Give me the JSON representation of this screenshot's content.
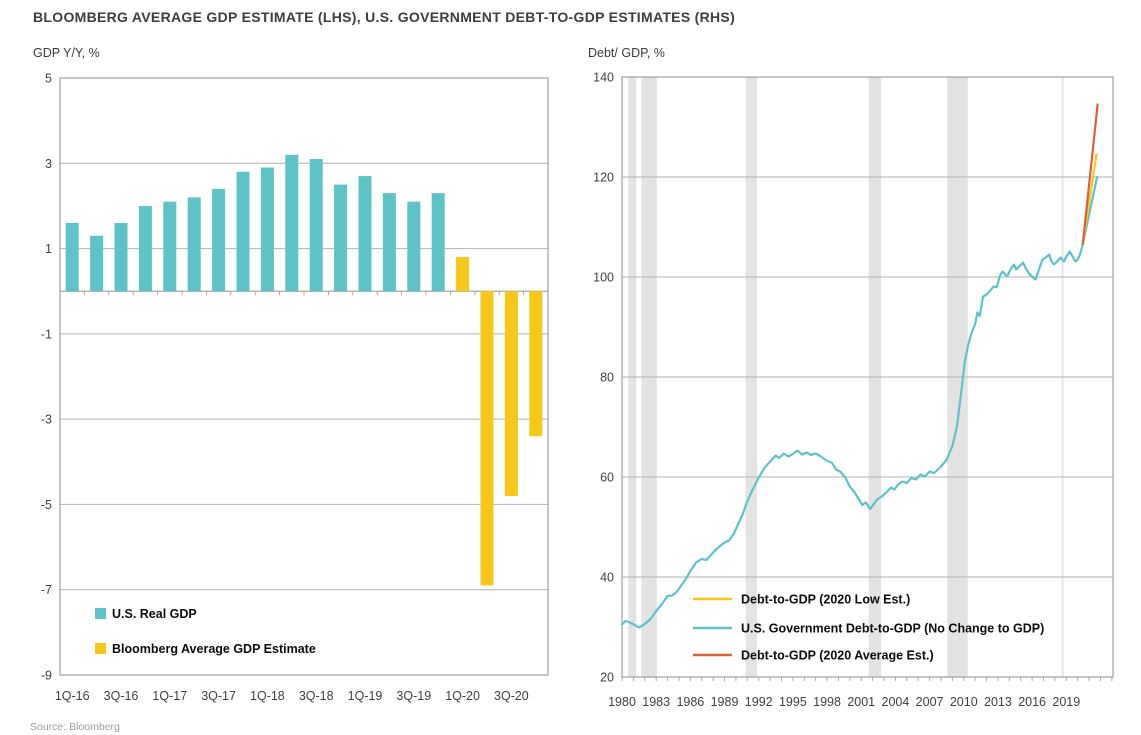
{
  "page": {
    "title": "BLOOMBERG AVERAGE GDP ESTIMATE (LHS), U.S. GOVERNMENT DEBT-TO-GDP ESTIMATES (RHS)",
    "source": "Source: Bloomberg"
  },
  "colors": {
    "teal": "#5EC3C8",
    "yellow": "#F8C71A",
    "orange": "#D96038",
    "grid": "#b3b3b3",
    "border": "#a0a0a0",
    "zero_line": "#a8a8a8",
    "tick": "#a8a8a8",
    "recession_band": "#e3e3e3"
  },
  "chart_data": [
    {
      "type": "bar",
      "title": "GDP Y/Y, %",
      "categories": [
        "1Q-16",
        "2Q-16",
        "3Q-16",
        "4Q-16",
        "1Q-17",
        "2Q-17",
        "3Q-17",
        "4Q-17",
        "1Q-18",
        "2Q-18",
        "3Q-18",
        "4Q-18",
        "1Q-19",
        "2Q-19",
        "3Q-19",
        "4Q-19",
        "1Q-20",
        "2Q-20",
        "3Q-20",
        "4Q-20"
      ],
      "x_tick_labels": [
        "1Q-16",
        "3Q-16",
        "1Q-17",
        "3Q-17",
        "1Q-18",
        "3Q-18",
        "1Q-19",
        "3Q-19",
        "1Q-20",
        "3Q-20"
      ],
      "series": [
        {
          "name": "U.S. Real GDP",
          "color_key": "teal",
          "values": [
            1.6,
            1.3,
            1.6,
            2.0,
            2.1,
            2.2,
            2.4,
            2.8,
            2.9,
            3.2,
            3.1,
            2.5,
            2.7,
            2.3,
            2.1,
            2.3,
            null,
            null,
            null,
            null
          ]
        },
        {
          "name": "Bloomberg Average GDP Estimate",
          "color_key": "yellow",
          "values": [
            null,
            null,
            null,
            null,
            null,
            null,
            null,
            null,
            null,
            null,
            null,
            null,
            null,
            null,
            null,
            null,
            0.8,
            -6.9,
            -4.8,
            -3.4
          ]
        }
      ],
      "ylim": [
        -9,
        5
      ],
      "y_ticks": [
        5,
        3,
        1,
        -1,
        -3,
        -5,
        -7,
        -9
      ],
      "grid": true,
      "zero_line": true,
      "legend_position": "bottom-left-inside"
    },
    {
      "type": "line",
      "title": "Debt/ GDP, %",
      "xlim": [
        1980,
        2023.1
      ],
      "ylim": [
        20,
        140
      ],
      "y_ticks": [
        140,
        120,
        100,
        80,
        60,
        40,
        20
      ],
      "x_ticks": [
        1980,
        1983,
        1986,
        1989,
        1992,
        1995,
        1998,
        2001,
        2004,
        2007,
        2010,
        2013,
        2016,
        2019
      ],
      "grid": true,
      "recession_bands": [
        [
          1980.55,
          1981.25
        ],
        [
          1981.7,
          1983.05
        ],
        [
          1990.85,
          1991.85
        ],
        [
          2001.65,
          2002.75
        ],
        [
          2008.55,
          2010.35
        ],
        [
          2018.6,
          2018.75
        ]
      ],
      "draw_order": [
        1,
        0,
        2
      ],
      "legend_position": "bottom-center-inside",
      "series": [
        {
          "name": "Debt-to-GDP (2020 Low Est.)",
          "color_key": "yellow",
          "points": [
            [
              2020.45,
              106.6
            ],
            [
              2021.65,
              124.5
            ]
          ]
        },
        {
          "name": "U.S. Government Debt-to-GDP (No Change to GDP)",
          "color_key": "teal",
          "points": [
            [
              1980,
              30.5
            ],
            [
              1980.3,
              31.2
            ],
            [
              1980.7,
              30.9
            ],
            [
              1981.1,
              30.4
            ],
            [
              1981.5,
              29.9
            ],
            [
              1982,
              30.6
            ],
            [
              1982.5,
              31.6
            ],
            [
              1983,
              33.2
            ],
            [
              1983.5,
              34.6
            ],
            [
              1984,
              36.2
            ],
            [
              1984.4,
              36.3
            ],
            [
              1984.8,
              37.0
            ],
            [
              1985.2,
              38.3
            ],
            [
              1985.6,
              39.6
            ],
            [
              1986,
              41.2
            ],
            [
              1986.5,
              42.9
            ],
            [
              1987,
              43.6
            ],
            [
              1987.4,
              43.4
            ],
            [
              1987.8,
              44.4
            ],
            [
              1988.2,
              45.4
            ],
            [
              1988.6,
              46.2
            ],
            [
              1989,
              46.9
            ],
            [
              1989.4,
              47.3
            ],
            [
              1989.8,
              48.6
            ],
            [
              1990.2,
              50.6
            ],
            [
              1990.6,
              52.6
            ],
            [
              1991,
              55.2
            ],
            [
              1991.5,
              57.6
            ],
            [
              1992,
              59.9
            ],
            [
              1992.5,
              61.8
            ],
            [
              1993,
              63.1
            ],
            [
              1993.5,
              64.3
            ],
            [
              1993.8,
              63.8
            ],
            [
              1994.2,
              64.7
            ],
            [
              1994.6,
              64.1
            ],
            [
              1995,
              64.6
            ],
            [
              1995.4,
              65.3
            ],
            [
              1995.8,
              64.5
            ],
            [
              1996.2,
              64.9
            ],
            [
              1996.6,
              64.4
            ],
            [
              1997,
              64.7
            ],
            [
              1997.4,
              64.2
            ],
            [
              1998,
              63.2
            ],
            [
              1998.4,
              62.9
            ],
            [
              1998.8,
              61.5
            ],
            [
              1999.2,
              61.0
            ],
            [
              1999.6,
              59.9
            ],
            [
              2000,
              58.1
            ],
            [
              2000.4,
              57.0
            ],
            [
              2000.8,
              55.5
            ],
            [
              2001.1,
              54.4
            ],
            [
              2001.4,
              54.9
            ],
            [
              2001.8,
              53.6
            ],
            [
              2002.1,
              54.6
            ],
            [
              2002.4,
              55.5
            ],
            [
              2002.8,
              56.1
            ],
            [
              2003.2,
              56.9
            ],
            [
              2003.6,
              57.9
            ],
            [
              2003.9,
              57.5
            ],
            [
              2004.2,
              58.4
            ],
            [
              2004.6,
              59.1
            ],
            [
              2005,
              58.8
            ],
            [
              2005.4,
              59.8
            ],
            [
              2005.8,
              59.5
            ],
            [
              2006.2,
              60.5
            ],
            [
              2006.6,
              60.1
            ],
            [
              2007,
              61.1
            ],
            [
              2007.4,
              60.8
            ],
            [
              2008,
              62.1
            ],
            [
              2008.5,
              63.5
            ],
            [
              2009,
              66.2
            ],
            [
              2009.4,
              70.0
            ],
            [
              2009.8,
              77.5
            ],
            [
              2010.1,
              83.2
            ],
            [
              2010.4,
              86.5
            ],
            [
              2010.7,
              88.9
            ],
            [
              2011,
              90.6
            ],
            [
              2011.2,
              92.9
            ],
            [
              2011.4,
              92.2
            ],
            [
              2011.7,
              96.1
            ],
            [
              2012,
              96.5
            ],
            [
              2012.3,
              97.2
            ],
            [
              2012.6,
              98.1
            ],
            [
              2012.9,
              98.0
            ],
            [
              2013.2,
              100.4
            ],
            [
              2013.4,
              101.1
            ],
            [
              2013.8,
              100.1
            ],
            [
              2014.1,
              101.5
            ],
            [
              2014.4,
              102.5
            ],
            [
              2014.6,
              101.5
            ],
            [
              2014.9,
              102.2
            ],
            [
              2015.2,
              102.9
            ],
            [
              2015.5,
              101.5
            ],
            [
              2015.8,
              100.5
            ],
            [
              2016,
              100.1
            ],
            [
              2016.3,
              99.5
            ],
            [
              2016.6,
              101.5
            ],
            [
              2016.9,
              103.5
            ],
            [
              2017.2,
              103.9
            ],
            [
              2017.5,
              104.5
            ],
            [
              2017.7,
              103.1
            ],
            [
              2017.9,
              102.5
            ],
            [
              2018.2,
              103.1
            ],
            [
              2018.5,
              103.9
            ],
            [
              2018.8,
              103.1
            ],
            [
              2019,
              104.1
            ],
            [
              2019.3,
              105.1
            ],
            [
              2019.6,
              103.9
            ],
            [
              2019.8,
              103.1
            ],
            [
              2020,
              103.5
            ],
            [
              2020.2,
              104.5
            ],
            [
              2020.45,
              106.6
            ],
            [
              2021.7,
              120.0
            ]
          ]
        },
        {
          "name": "Debt-to-GDP (2020 Average Est.)",
          "color_key": "orange",
          "points": [
            [
              2020.45,
              106.6
            ],
            [
              2021.75,
              134.5
            ]
          ]
        }
      ]
    }
  ]
}
